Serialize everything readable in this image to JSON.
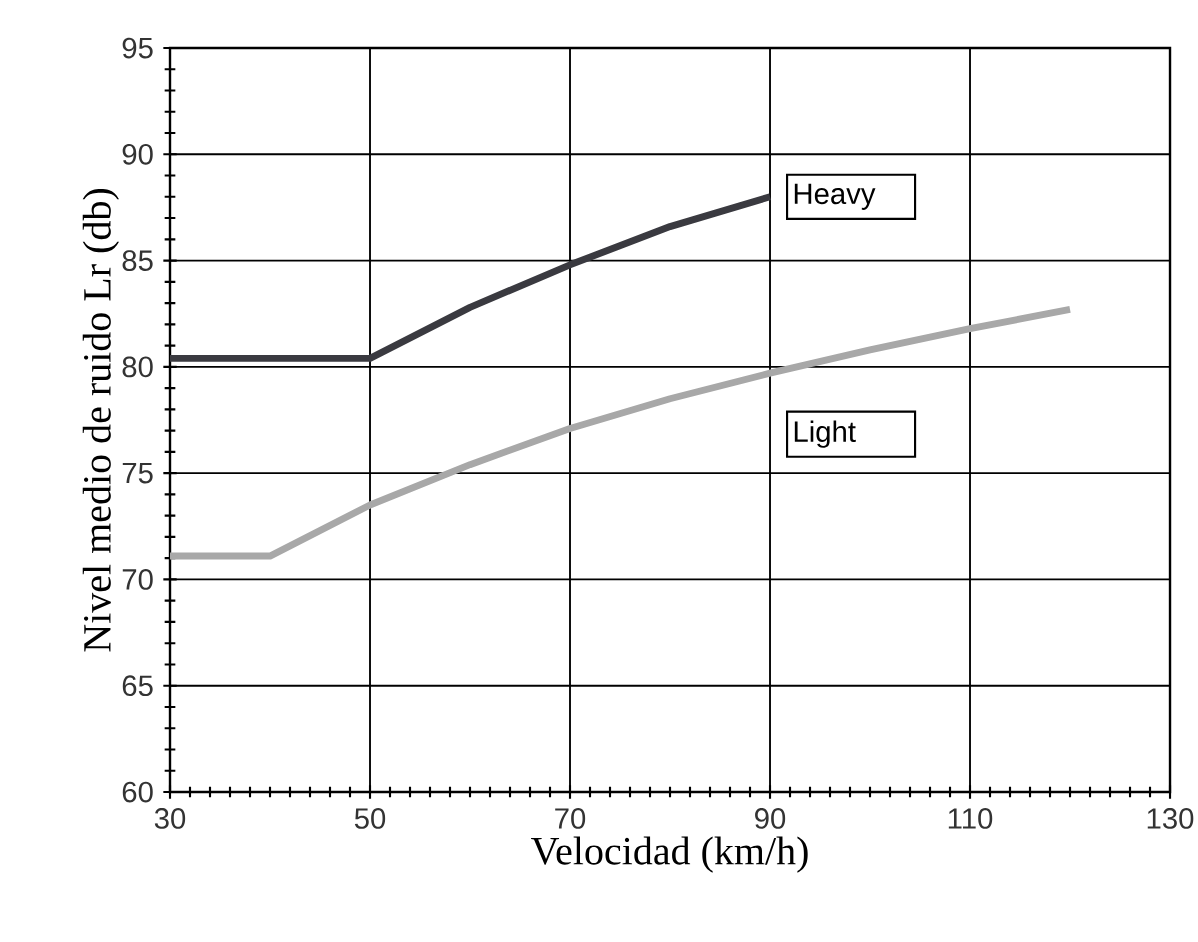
{
  "chart_data": {
    "type": "line",
    "xlabel": "Velocidad (km/h)",
    "ylabel": "Nivel medio de ruido Lr (db)",
    "xlim": [
      30,
      130
    ],
    "ylim": [
      60,
      95
    ],
    "xticks": [
      30,
      50,
      70,
      90,
      110,
      130
    ],
    "yticks": [
      60,
      65,
      70,
      75,
      80,
      85,
      90,
      95
    ],
    "grid": true,
    "line_style": "solid",
    "marker": "none",
    "series": [
      {
        "name": "Heavy",
        "color": "#3a3a40",
        "x": [
          30,
          50,
          60,
          70,
          80,
          90
        ],
        "values": [
          80.4,
          80.4,
          82.8,
          84.8,
          86.6,
          88.0
        ]
      },
      {
        "name": "Light",
        "color": "#a8a8a8",
        "x": [
          30,
          40,
          50,
          60,
          70,
          80,
          90,
          100,
          110,
          120
        ],
        "values": [
          71.1,
          71.1,
          73.5,
          75.4,
          77.1,
          78.5,
          79.7,
          80.8,
          81.8,
          82.7
        ]
      }
    ]
  }
}
